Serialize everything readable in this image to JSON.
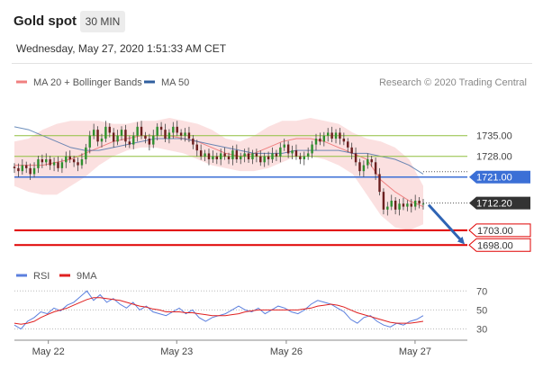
{
  "header": {
    "title": "Gold spot",
    "timeframe": "30 MIN",
    "datetime": "Wednesday, May 27, 2020 1:51:33 AM CET"
  },
  "legend": {
    "ma20_bb": "MA 20 + Bollinger Bands",
    "ma50": "MA 50",
    "credit": "Research © 2020 Trading Central",
    "ma20_color": "#f08080",
    "ma50_color": "#2f5f9f"
  },
  "rsi_legend": {
    "rsi": "RSI",
    "ma9": "9MA",
    "rsi_color": "#5b7fde",
    "ma9_color": "#e02020"
  },
  "chart_data": [
    {
      "type": "line",
      "title": "",
      "subtitle": "",
      "xlabel": "",
      "ylabel": "",
      "x_ticks": [
        "May 22",
        "May 23",
        "May 26",
        "May 27"
      ],
      "ylim": [
        1692,
        1748
      ],
      "grid": false,
      "legend_position": "top-left",
      "levels": [
        {
          "label": "1735.00",
          "value": 1735.0,
          "kind": "resistance",
          "color": "#8fbf3f"
        },
        {
          "label": "1728.00",
          "value": 1728.0,
          "kind": "resistance",
          "color": "#8fbf3f"
        },
        {
          "label": "1721.00",
          "value": 1721.0,
          "kind": "pivot",
          "color": "#3b6fd6"
        },
        {
          "label": "1712.20",
          "value": 1712.2,
          "kind": "last",
          "color": "#333333"
        },
        {
          "label": "1703.00",
          "value": 1703.0,
          "kind": "support",
          "color": "#e00000"
        },
        {
          "label": "1698.00",
          "value": 1698.0,
          "kind": "support",
          "color": "#e00000"
        }
      ],
      "series": [
        {
          "name": "Price",
          "style": "candlestick",
          "values": [
            1724,
            1723,
            1725,
            1724,
            1722,
            1724,
            1727,
            1726,
            1727,
            1725,
            1726,
            1724,
            1726,
            1728,
            1727,
            1726,
            1725,
            1727,
            1731,
            1735,
            1737,
            1733,
            1734,
            1738,
            1736,
            1733,
            1735,
            1737,
            1733,
            1732,
            1735,
            1738,
            1735,
            1734,
            1732,
            1735,
            1738,
            1737,
            1734,
            1736,
            1738,
            1736,
            1735,
            1736,
            1734,
            1732,
            1730,
            1728,
            1729,
            1727,
            1728,
            1727,
            1729,
            1728,
            1727,
            1730,
            1727,
            1728,
            1729,
            1727,
            1729,
            1728,
            1726,
            1728,
            1727,
            1729,
            1728,
            1731,
            1732,
            1729,
            1730,
            1728,
            1727,
            1728,
            1729,
            1732,
            1734,
            1733,
            1735,
            1736,
            1734,
            1736,
            1734,
            1733,
            1731,
            1729,
            1726,
            1723,
            1725,
            1727,
            1726,
            1722,
            1716,
            1710,
            1711,
            1713,
            1710,
            1712,
            1711,
            1712,
            1711,
            1713,
            1712,
            1712
          ]
        },
        {
          "name": "MA 20 + Bollinger Bands",
          "style": "band",
          "values": [
            1725,
            1725,
            1725,
            1726,
            1727,
            1729,
            1731,
            1733,
            1734,
            1735,
            1735,
            1735,
            1734,
            1733,
            1731,
            1729,
            1728,
            1729,
            1731,
            1733,
            1734,
            1734,
            1733,
            1731,
            1729,
            1727,
            1720,
            1716,
            1713,
            1711
          ],
          "upper": [
            1733,
            1734,
            1737,
            1739,
            1740,
            1740,
            1740,
            1739,
            1739,
            1740,
            1740,
            1741,
            1740,
            1739,
            1737,
            1734,
            1733,
            1735,
            1738,
            1740,
            1740,
            1741,
            1740,
            1739,
            1736,
            1734,
            1733,
            1731,
            1727,
            1718
          ],
          "lower": [
            1718,
            1716,
            1715,
            1715,
            1718,
            1721,
            1725,
            1728,
            1730,
            1731,
            1731,
            1730,
            1729,
            1727,
            1725,
            1724,
            1723,
            1723,
            1724,
            1726,
            1728,
            1728,
            1727,
            1725,
            1722,
            1715,
            1708,
            1704,
            1703,
            1705
          ]
        },
        {
          "name": "MA 50",
          "style": "line",
          "values": [
            1738,
            1737,
            1735,
            1733,
            1731,
            1730,
            1730,
            1731,
            1732,
            1733,
            1734,
            1734,
            1734,
            1733,
            1732,
            1731,
            1730,
            1729,
            1729,
            1729,
            1730,
            1730,
            1730,
            1730,
            1729,
            1729,
            1728,
            1727,
            1725,
            1722
          ]
        }
      ],
      "arrow": {
        "from": 1712.2,
        "to": 1698.0,
        "direction": "down"
      }
    },
    {
      "type": "line",
      "title": "",
      "xlabel": "",
      "ylabel": "",
      "x_ticks": [
        "May 22",
        "May 23",
        "May 26",
        "May 27"
      ],
      "y_ticks": [
        70,
        50,
        30
      ],
      "ylim": [
        20,
        75
      ],
      "grid": true,
      "legend_position": "top-left",
      "series": [
        {
          "name": "RSI",
          "values": [
            34,
            30,
            38,
            42,
            48,
            46,
            52,
            49,
            55,
            58,
            64,
            70,
            60,
            66,
            58,
            62,
            56,
            52,
            58,
            50,
            54,
            48,
            46,
            44,
            48,
            52,
            46,
            50,
            42,
            38,
            42,
            44,
            46,
            50,
            54,
            50,
            48,
            52,
            46,
            50,
            54,
            52,
            48,
            46,
            50,
            56,
            60,
            58,
            56,
            52,
            48,
            40,
            36,
            42,
            44,
            38,
            34,
            32,
            36,
            34,
            38,
            40,
            44
          ]
        },
        {
          "name": "9MA",
          "values": [
            36,
            35,
            36,
            38,
            42,
            45,
            48,
            50,
            52,
            55,
            58,
            61,
            63,
            63,
            62,
            61,
            60,
            58,
            56,
            54,
            53,
            51,
            50,
            48,
            48,
            48,
            47,
            47,
            46,
            45,
            44,
            44,
            44,
            45,
            46,
            48,
            49,
            50,
            50,
            50,
            50,
            50,
            50,
            50,
            51,
            52,
            54,
            55,
            56,
            55,
            53,
            50,
            47,
            45,
            43,
            41,
            39,
            37,
            36,
            36,
            36,
            37,
            38
          ]
        }
      ]
    }
  ]
}
